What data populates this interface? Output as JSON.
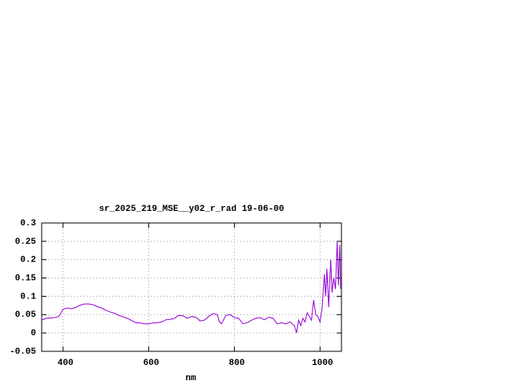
{
  "chart_data": {
    "type": "line",
    "title": "sr_2025_219_MSE__y02_r_rad 19-06-00",
    "x_label": "nm",
    "xlim": [
      350,
      1050
    ],
    "xticks": [
      400,
      600,
      800,
      1000
    ],
    "ylim": [
      -0.05,
      0.3
    ],
    "yticks": [
      -0.05,
      0,
      0.05,
      0.1,
      0.15,
      0.2,
      0.25,
      0.3
    ],
    "grid": true,
    "x": [
      350,
      360,
      380,
      390,
      400,
      410,
      420,
      430,
      440,
      450,
      460,
      470,
      480,
      490,
      500,
      510,
      520,
      530,
      540,
      550,
      560,
      570,
      580,
      590,
      600,
      610,
      620,
      630,
      640,
      650,
      660,
      670,
      680,
      690,
      700,
      710,
      720,
      730,
      740,
      750,
      760,
      765,
      770,
      780,
      790,
      800,
      810,
      820,
      830,
      840,
      850,
      860,
      870,
      880,
      890,
      900,
      910,
      920,
      930,
      940,
      945,
      950,
      955,
      960,
      965,
      970,
      975,
      980,
      985,
      990,
      995,
      1000,
      1005,
      1010,
      1013,
      1016,
      1020,
      1025,
      1028,
      1032,
      1036,
      1040,
      1043,
      1046,
      1048
    ],
    "series": [
      {
        "color": "#9400d3",
        "values": [
          0.035,
          0.04,
          0.042,
          0.045,
          0.065,
          0.068,
          0.066,
          0.07,
          0.076,
          0.079,
          0.079,
          0.077,
          0.072,
          0.068,
          0.062,
          0.057,
          0.054,
          0.048,
          0.044,
          0.04,
          0.034,
          0.028,
          0.027,
          0.025,
          0.025,
          0.027,
          0.028,
          0.03,
          0.036,
          0.037,
          0.04,
          0.048,
          0.047,
          0.04,
          0.045,
          0.043,
          0.033,
          0.035,
          0.045,
          0.053,
          0.05,
          0.03,
          0.025,
          0.048,
          0.05,
          0.042,
          0.04,
          0.025,
          0.028,
          0.035,
          0.04,
          0.042,
          0.036,
          0.043,
          0.04,
          0.025,
          0.028,
          0.025,
          0.03,
          0.02,
          0.0,
          0.035,
          0.02,
          0.04,
          0.03,
          0.055,
          0.045,
          0.035,
          0.09,
          0.05,
          0.045,
          0.03,
          0.07,
          0.16,
          0.1,
          0.175,
          0.07,
          0.2,
          0.11,
          0.15,
          0.12,
          0.25,
          0.13,
          0.24,
          0.12
        ]
      }
    ]
  }
}
